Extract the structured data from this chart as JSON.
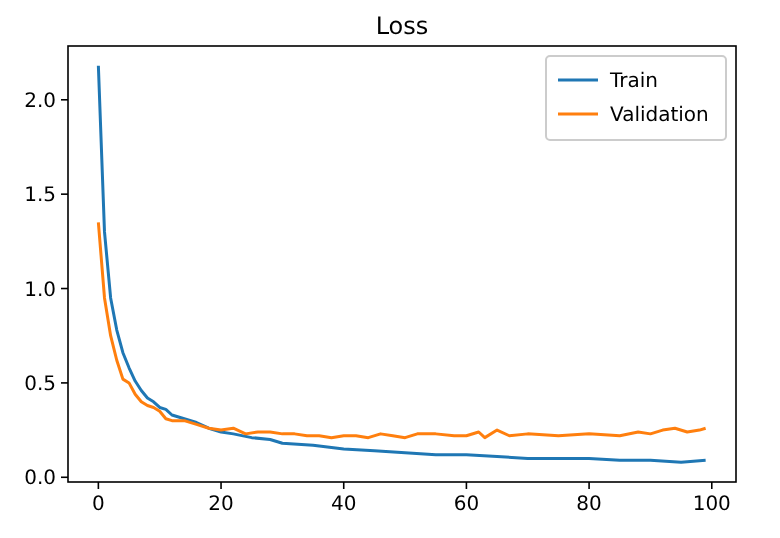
{
  "chart_data": {
    "type": "line",
    "title": "Loss",
    "xlim": [
      -4.95,
      103.95
    ],
    "ylim": [
      -0.025,
      2.285
    ],
    "xticks": [
      0,
      20,
      40,
      60,
      80,
      100
    ],
    "yticks": [
      {
        "value": 0,
        "label": "0.0"
      },
      {
        "value": 0.5,
        "label": "0.5"
      },
      {
        "value": 1,
        "label": "1.0"
      },
      {
        "value": 1.5,
        "label": "1.5"
      },
      {
        "value": 2,
        "label": "2.0"
      }
    ],
    "legend": "top right",
    "grid": false,
    "series": [
      {
        "name": "Train",
        "color": "#1f77b4",
        "x": [
          0,
          1,
          2,
          3,
          4,
          5,
          6,
          7,
          8,
          9,
          10,
          11,
          12,
          14,
          16,
          18,
          20,
          22,
          25,
          28,
          30,
          35,
          40,
          45,
          50,
          55,
          60,
          65,
          70,
          75,
          80,
          85,
          90,
          95,
          99
        ],
        "values": [
          2.18,
          1.3,
          0.95,
          0.78,
          0.66,
          0.58,
          0.51,
          0.46,
          0.42,
          0.4,
          0.37,
          0.36,
          0.33,
          0.31,
          0.29,
          0.26,
          0.24,
          0.23,
          0.21,
          0.2,
          0.18,
          0.17,
          0.15,
          0.14,
          0.13,
          0.12,
          0.12,
          0.11,
          0.1,
          0.1,
          0.1,
          0.09,
          0.09,
          0.08,
          0.09
        ]
      },
      {
        "name": "Validation",
        "color": "#ff7f0e",
        "x": [
          0,
          1,
          2,
          3,
          4,
          5,
          6,
          7,
          8,
          9,
          10,
          11,
          12,
          14,
          16,
          18,
          20,
          22,
          24,
          26,
          28,
          30,
          32,
          34,
          36,
          38,
          40,
          42,
          44,
          46,
          48,
          50,
          52,
          55,
          58,
          60,
          62,
          63,
          65,
          67,
          70,
          75,
          80,
          85,
          88,
          90,
          92,
          94,
          96,
          98,
          99
        ],
        "values": [
          1.35,
          0.95,
          0.75,
          0.62,
          0.52,
          0.5,
          0.44,
          0.4,
          0.38,
          0.37,
          0.35,
          0.31,
          0.3,
          0.3,
          0.28,
          0.26,
          0.25,
          0.26,
          0.23,
          0.24,
          0.24,
          0.23,
          0.23,
          0.22,
          0.22,
          0.21,
          0.22,
          0.22,
          0.21,
          0.23,
          0.22,
          0.21,
          0.23,
          0.23,
          0.22,
          0.22,
          0.24,
          0.21,
          0.25,
          0.22,
          0.23,
          0.22,
          0.23,
          0.22,
          0.24,
          0.23,
          0.25,
          0.26,
          0.24,
          0.25,
          0.26
        ]
      }
    ]
  }
}
